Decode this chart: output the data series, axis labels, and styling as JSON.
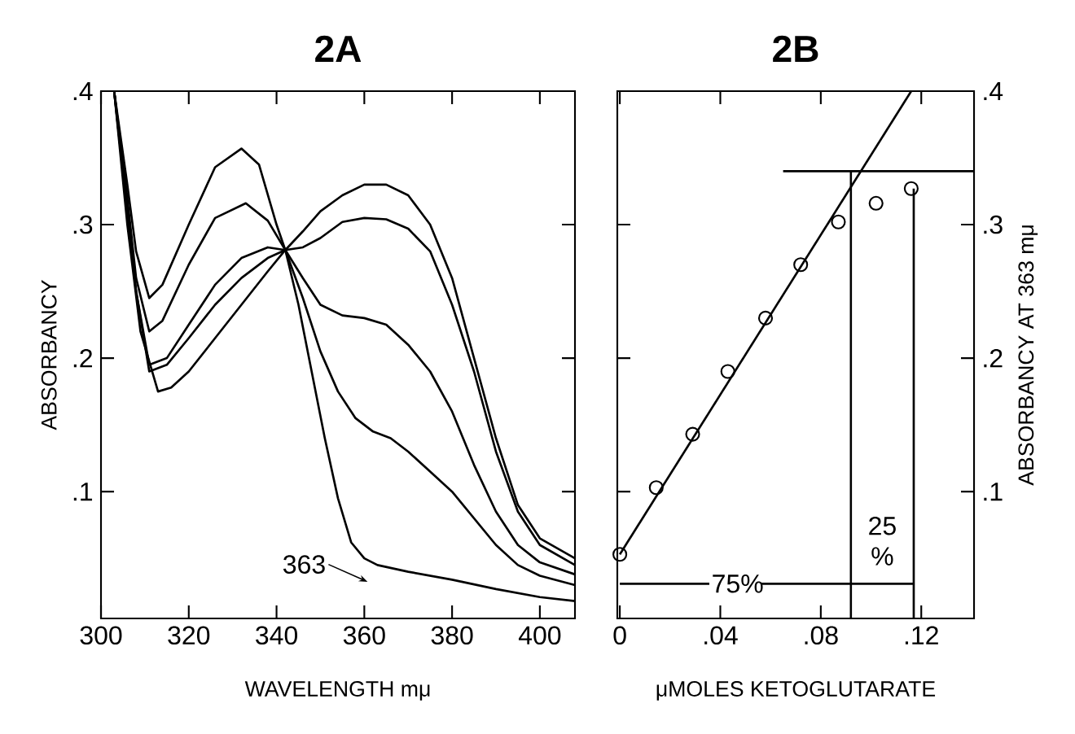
{
  "chart_data": [
    {
      "type": "line",
      "title": "2A",
      "xlabel": "WAVELENGTH mμ",
      "ylabel": "ABSORBANCY",
      "xlim": [
        300,
        408
      ],
      "ylim": [
        0.005,
        0.4
      ],
      "xticks": [
        300,
        320,
        340,
        360,
        380,
        400
      ],
      "yticks": [
        {
          "value": 0.1,
          "label": ".1"
        },
        {
          "value": 0.2,
          "label": ".2"
        },
        {
          "value": 0.3,
          "label": ".3"
        },
        {
          "value": 0.4,
          "label": ".4"
        }
      ],
      "series": [
        {
          "color": "#000000",
          "x": [
            303,
            306,
            308,
            311,
            314,
            320,
            326,
            332,
            336,
            340,
            342,
            345,
            348,
            351,
            354,
            357,
            360,
            363,
            370,
            380,
            390,
            400,
            408
          ],
          "values": [
            0.4,
            0.33,
            0.28,
            0.245,
            0.255,
            0.3,
            0.343,
            0.357,
            0.345,
            0.3,
            0.281,
            0.24,
            0.19,
            0.14,
            0.095,
            0.062,
            0.05,
            0.045,
            0.04,
            0.034,
            0.027,
            0.021,
            0.018
          ]
        },
        {
          "color": "#000000",
          "x": [
            303,
            306,
            308,
            311,
            314,
            320,
            326,
            333,
            338,
            342,
            346,
            350,
            354,
            358,
            362,
            366,
            370,
            375,
            380,
            385,
            390,
            395,
            400,
            408
          ],
          "values": [
            0.4,
            0.32,
            0.26,
            0.22,
            0.228,
            0.27,
            0.305,
            0.316,
            0.303,
            0.281,
            0.245,
            0.205,
            0.175,
            0.155,
            0.145,
            0.14,
            0.13,
            0.115,
            0.1,
            0.08,
            0.06,
            0.045,
            0.037,
            0.03
          ]
        },
        {
          "color": "#000000",
          "x": [
            303,
            306,
            308,
            311,
            315,
            320,
            326,
            332,
            338,
            342,
            346,
            350,
            355,
            360,
            365,
            370,
            375,
            380,
            385,
            390,
            395,
            400,
            408
          ],
          "values": [
            0.4,
            0.31,
            0.25,
            0.195,
            0.2,
            0.225,
            0.255,
            0.275,
            0.283,
            0.281,
            0.26,
            0.24,
            0.232,
            0.23,
            0.225,
            0.21,
            0.19,
            0.16,
            0.12,
            0.085,
            0.06,
            0.047,
            0.038
          ]
        },
        {
          "color": "#000000",
          "x": [
            303,
            306,
            308,
            311,
            315,
            320,
            326,
            332,
            338,
            342,
            346,
            350,
            355,
            360,
            365,
            370,
            375,
            380,
            385,
            390,
            395,
            400,
            408
          ],
          "values": [
            0.4,
            0.31,
            0.25,
            0.19,
            0.195,
            0.215,
            0.24,
            0.26,
            0.275,
            0.281,
            0.283,
            0.29,
            0.302,
            0.305,
            0.304,
            0.297,
            0.28,
            0.24,
            0.19,
            0.13,
            0.085,
            0.06,
            0.045
          ]
        },
        {
          "color": "#000000",
          "x": [
            303,
            306,
            309,
            313,
            316,
            320,
            326,
            332,
            338,
            342,
            346,
            350,
            355,
            360,
            365,
            370,
            375,
            380,
            385,
            390,
            395,
            400,
            408
          ],
          "values": [
            0.4,
            0.3,
            0.22,
            0.175,
            0.178,
            0.19,
            0.215,
            0.24,
            0.265,
            0.281,
            0.295,
            0.31,
            0.322,
            0.33,
            0.33,
            0.322,
            0.3,
            0.26,
            0.2,
            0.14,
            0.09,
            0.065,
            0.05
          ]
        }
      ],
      "annotations": [
        "363"
      ]
    },
    {
      "type": "scatter",
      "title": "2B",
      "xlabel": "μMOLES KETOGLUTARATE",
      "ylabel": "ABSORBANCY AT 363 mμ",
      "xlim": [
        -0.001,
        0.141
      ],
      "ylim": [
        0.005,
        0.4
      ],
      "xticks": [
        0,
        {
          "value": 0.04,
          "label": ".04"
        },
        {
          "value": 0.08,
          "label": ".08"
        },
        {
          "value": 0.12,
          "label": ".12"
        }
      ],
      "yticks": [
        {
          "value": 0.1,
          "label": ".1"
        },
        {
          "value": 0.2,
          "label": ".2"
        },
        {
          "value": 0.3,
          "label": ".3"
        },
        {
          "value": 0.4,
          "label": ".4"
        }
      ],
      "series": [
        {
          "color": "#000000",
          "marker": "circle",
          "x": [
            0,
            0.0145,
            0.029,
            0.043,
            0.058,
            0.072,
            0.087,
            0.102,
            0.116
          ],
          "values": [
            0.053,
            0.103,
            0.143,
            0.19,
            0.23,
            0.27,
            0.302,
            0.316,
            0.327
          ]
        },
        {
          "type": "line",
          "color": "#000000",
          "x": [
            0,
            0.116
          ],
          "values": [
            0.053,
            0.4
          ]
        },
        {
          "type": "line",
          "color": "#000000",
          "x": [
            0.065,
            0.141
          ],
          "values": [
            0.34,
            0.34
          ]
        },
        {
          "type": "line",
          "color": "#000000",
          "x": [
            0.092,
            0.092
          ],
          "values": [
            0.005,
            0.34
          ]
        },
        {
          "type": "line",
          "color": "#000000",
          "x": [
            0.117,
            0.117
          ],
          "values": [
            0.005,
            0.327
          ]
        },
        {
          "type": "line",
          "color": "#000000",
          "x": [
            0,
            0.092,
            0.117
          ],
          "values": [
            0.031,
            0.031,
            0.031
          ]
        }
      ],
      "annotations": [
        {
          "text": "75%",
          "x": 0.046,
          "y": 0.031
        },
        {
          "text": "25 %",
          "x": 0.1045,
          "y": 0.063
        }
      ]
    }
  ]
}
